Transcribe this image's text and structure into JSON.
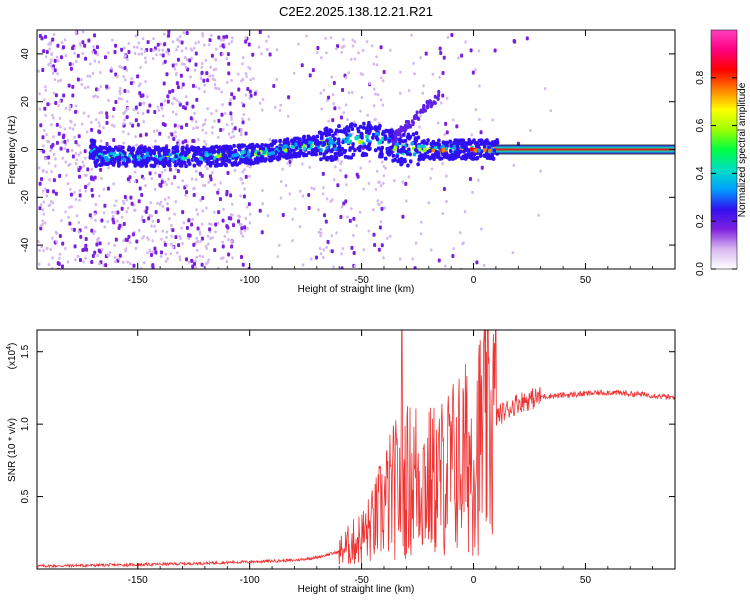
{
  "figure": {
    "title": "C2E2.2025.138.12.21.R21"
  },
  "chart_data": [
    {
      "type": "heatmap",
      "title": "C2E2.2025.138.12.21.R21",
      "xlabel": "Height of straight line (km)",
      "ylabel": "Frequency (Hz)",
      "xlim": [
        -195,
        90
      ],
      "ylim": [
        -50,
        50
      ],
      "xticks": [
        -150,
        -100,
        -50,
        0,
        50
      ],
      "yticks": [
        -40,
        -20,
        0,
        20,
        40
      ],
      "colorbar": {
        "label": "Normalized spectral amplitude",
        "range": [
          0,
          1
        ],
        "ticks": [
          "0.0",
          "0.2",
          "0.4",
          "0.6",
          "0.8"
        ],
        "tick_values": [
          0,
          0.2,
          0.4,
          0.6,
          0.8
        ],
        "colormap": [
          "#ffffff",
          "#d8b8f0",
          "#8020e0",
          "#3010f0",
          "#00a0ff",
          "#00e0c0",
          "#00ff40",
          "#a0ff00",
          "#ffff00",
          "#ff8000",
          "#ff0000",
          "#ff0080",
          "#ff40c0"
        ]
      },
      "grid": false,
      "description_series": [
        {
          "name": "core",
          "x_range": [
            -170,
            10
          ],
          "center_freq_by_x": [
            [
              -170,
              -3
            ],
            [
              -120,
              -3
            ],
            [
              -100,
              -2
            ],
            [
              -80,
              1
            ],
            [
              -60,
              3
            ],
            [
              -45,
              5
            ],
            [
              -35,
              0
            ],
            [
              -20,
              0
            ],
            [
              0,
              0
            ],
            [
              10,
              0
            ]
          ]
        },
        {
          "name": "carrier",
          "x_range": [
            10,
            90
          ],
          "freq": 0,
          "amplitude": 1.0
        }
      ]
    },
    {
      "type": "line",
      "xlabel": "Height of straight line (km)",
      "ylabel": "SNR (10 * v/v)",
      "y_multiplier": "(x10",
      "y_multiplier_exp": "4",
      "y_multiplier_close": ")",
      "xlim": [
        -195,
        90
      ],
      "ylim": [
        0,
        1.65
      ],
      "xticks": [
        -150,
        -100,
        -50,
        0,
        50
      ],
      "yticks": [
        0.5,
        1.0,
        1.5
      ],
      "ytick_labels": [
        "0.5",
        "1.0",
        "1.5"
      ],
      "color": "#ee3333",
      "series": [
        {
          "x": [
            -195,
            -150,
            -120,
            -100,
            -80,
            -70,
            -60,
            -50,
            -45,
            -40,
            -35,
            -30,
            -25,
            -20,
            -15,
            -10,
            -5,
            0,
            5,
            10,
            15,
            20,
            25,
            30,
            40,
            50,
            60,
            70,
            80,
            90
          ],
          "y": [
            0.02,
            0.03,
            0.04,
            0.05,
            0.06,
            0.08,
            0.12,
            0.22,
            0.3,
            0.45,
            0.55,
            0.6,
            0.65,
            0.6,
            0.62,
            0.7,
            0.75,
            0.8,
            0.95,
            1.05,
            1.1,
            1.15,
            1.17,
            1.19,
            1.2,
            1.21,
            1.22,
            1.21,
            1.2,
            1.18
          ],
          "peak": {
            "x": -32,
            "y": 1.65
          }
        }
      ]
    }
  ]
}
